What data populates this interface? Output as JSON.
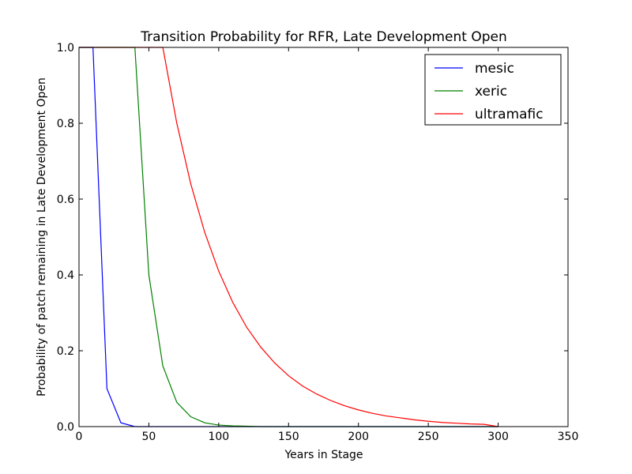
{
  "chart_data": {
    "type": "line",
    "title": "Transition Probability for RFR, Late Development Open",
    "xlabel": "Years in Stage",
    "ylabel": "Probability of patch remaining in Late Development Open",
    "xlim": [
      0,
      350
    ],
    "ylim": [
      0,
      1.0
    ],
    "xticks": [
      0,
      50,
      100,
      150,
      200,
      250,
      300,
      350
    ],
    "xtick_labels": [
      "0",
      "50",
      "100",
      "150",
      "200",
      "250",
      "300",
      "350"
    ],
    "yticks": [
      0,
      0.2,
      0.4,
      0.6,
      0.8,
      1.0
    ],
    "ytick_labels": [
      "0.0",
      "0.2",
      "0.4",
      "0.6",
      "0.8",
      "1.0"
    ],
    "grid": false,
    "legend_position": "top-right",
    "series": [
      {
        "name": "mesic",
        "color": "#0000ff",
        "x": [
          0,
          10,
          20,
          30,
          40,
          50,
          60,
          70,
          80,
          90,
          100,
          110,
          120,
          130,
          140,
          150,
          160,
          170,
          180,
          190,
          200,
          210,
          220,
          230,
          240,
          250,
          260,
          270,
          280,
          290,
          300
        ],
        "y": [
          1.0,
          1.0,
          0.1,
          0.01,
          0.0,
          0.0,
          0.0,
          0.0,
          0.0,
          0.0,
          0.0,
          0.0,
          0.0,
          0.0,
          0.0,
          0.0,
          0.0,
          0.0,
          0.0,
          0.0,
          0.0,
          0.0,
          0.0,
          0.0,
          0.0,
          0.0,
          0.0,
          0.0,
          0.0,
          0.0,
          0.0
        ]
      },
      {
        "name": "xeric",
        "color": "#008000",
        "x": [
          0,
          10,
          20,
          30,
          40,
          50,
          60,
          70,
          80,
          90,
          100,
          110,
          120,
          130,
          140,
          150,
          160,
          170,
          180,
          190,
          200,
          210,
          220,
          230,
          240,
          250,
          260,
          270,
          280,
          290,
          300
        ],
        "y": [
          1.0,
          1.0,
          1.0,
          1.0,
          1.0,
          0.4,
          0.16,
          0.064,
          0.026,
          0.01,
          0.004,
          0.002,
          0.001,
          0.0,
          0.0,
          0.0,
          0.0,
          0.0,
          0.0,
          0.0,
          0.0,
          0.0,
          0.0,
          0.0,
          0.0,
          0.0,
          0.0,
          0.0,
          0.0,
          0.0,
          0.0
        ]
      },
      {
        "name": "ultramafic",
        "color": "#ff0000",
        "x": [
          0,
          10,
          20,
          30,
          40,
          50,
          60,
          70,
          80,
          90,
          100,
          110,
          120,
          130,
          140,
          150,
          160,
          170,
          180,
          190,
          200,
          210,
          220,
          230,
          240,
          250,
          260,
          270,
          280,
          290,
          300
        ],
        "y": [
          1.0,
          1.0,
          1.0,
          1.0,
          1.0,
          1.0,
          1.0,
          0.8,
          0.64,
          0.512,
          0.41,
          0.328,
          0.262,
          0.21,
          0.168,
          0.134,
          0.107,
          0.086,
          0.069,
          0.055,
          0.044,
          0.035,
          0.028,
          0.023,
          0.018,
          0.014,
          0.011,
          0.009,
          0.007,
          0.006,
          0.0
        ]
      }
    ]
  }
}
